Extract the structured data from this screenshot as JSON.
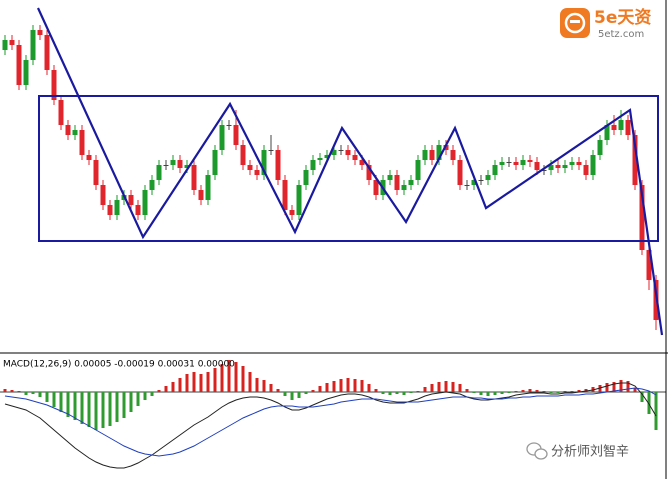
{
  "chart_data": [
    {
      "type": "candlestick",
      "ylim": [
        0,
        350
      ],
      "up_color": "#1c9a2c",
      "down_color": "#e0262c",
      "open": [
        300,
        310,
        305,
        265,
        290,
        320,
        315,
        280,
        250,
        225,
        215,
        220,
        195,
        190,
        165,
        145,
        135,
        150,
        155,
        145,
        135,
        160,
        170,
        185,
        185,
        190,
        182,
        185,
        160,
        150,
        175,
        200,
        225,
        225,
        205,
        185,
        180,
        175,
        200,
        200,
        170,
        140,
        135,
        165,
        180,
        190,
        192,
        195,
        200,
        200,
        195,
        190,
        185,
        170,
        155,
        170,
        175,
        160,
        165,
        170,
        190,
        200,
        190,
        205,
        200,
        190,
        165,
        165,
        170,
        170,
        175,
        185,
        188,
        188,
        185,
        190,
        188,
        180,
        180,
        185,
        182,
        185,
        188,
        185,
        175,
        195,
        210,
        225,
        220,
        230,
        215,
        165,
        100,
        70
      ],
      "high": [
        315,
        315,
        310,
        295,
        325,
        325,
        320,
        285,
        255,
        230,
        225,
        225,
        200,
        195,
        170,
        150,
        155,
        160,
        160,
        150,
        165,
        175,
        190,
        190,
        195,
        195,
        190,
        190,
        165,
        180,
        205,
        230,
        230,
        240,
        210,
        190,
        185,
        205,
        215,
        205,
        175,
        145,
        170,
        185,
        195,
        197,
        200,
        205,
        205,
        205,
        200,
        195,
        190,
        175,
        175,
        180,
        180,
        170,
        175,
        195,
        205,
        205,
        210,
        210,
        205,
        195,
        170,
        175,
        175,
        180,
        190,
        193,
        193,
        193,
        195,
        195,
        193,
        185,
        190,
        190,
        190,
        193,
        193,
        190,
        200,
        215,
        230,
        235,
        240,
        235,
        220,
        170,
        105,
        75
      ],
      "low": [
        295,
        300,
        260,
        260,
        285,
        310,
        275,
        245,
        220,
        210,
        210,
        190,
        185,
        160,
        140,
        130,
        130,
        145,
        140,
        130,
        130,
        155,
        165,
        180,
        180,
        177,
        177,
        155,
        145,
        145,
        170,
        195,
        220,
        200,
        180,
        175,
        170,
        170,
        195,
        165,
        135,
        130,
        130,
        160,
        175,
        185,
        187,
        190,
        195,
        190,
        185,
        180,
        165,
        150,
        150,
        165,
        155,
        155,
        160,
        165,
        185,
        185,
        185,
        195,
        185,
        160,
        160,
        160,
        165,
        165,
        170,
        180,
        183,
        180,
        180,
        183,
        175,
        175,
        175,
        177,
        177,
        180,
        180,
        170,
        170,
        190,
        205,
        215,
        215,
        210,
        160,
        95,
        60,
        20
      ],
      "close": [
        310,
        305,
        265,
        290,
        320,
        315,
        280,
        250,
        225,
        215,
        220,
        195,
        190,
        165,
        145,
        135,
        150,
        155,
        145,
        135,
        160,
        170,
        185,
        185,
        190,
        182,
        185,
        160,
        150,
        175,
        200,
        225,
        225,
        205,
        185,
        180,
        175,
        200,
        200,
        170,
        140,
        135,
        165,
        180,
        190,
        192,
        195,
        200,
        200,
        195,
        190,
        185,
        170,
        155,
        170,
        175,
        160,
        165,
        170,
        190,
        200,
        190,
        205,
        200,
        190,
        165,
        165,
        170,
        170,
        175,
        185,
        188,
        188,
        185,
        190,
        188,
        180,
        180,
        185,
        182,
        185,
        188,
        185,
        175,
        195,
        210,
        225,
        220,
        230,
        215,
        165,
        100,
        70,
        30
      ]
    },
    {
      "type": "macd",
      "title": "MACD(12,26,9) 0.00005 -0.00019 0.00031 0.00000",
      "ylim": [
        -85,
        35
      ],
      "up_color": "#d8221f",
      "down_color": "#2f9a2f",
      "histogram": [
        3,
        2,
        1,
        -3,
        -2,
        -5,
        -10,
        -15,
        -20,
        -25,
        -28,
        -32,
        -35,
        -38,
        -36,
        -34,
        -30,
        -26,
        -20,
        -14,
        -8,
        -4,
        2,
        6,
        10,
        14,
        18,
        20,
        18,
        20,
        24,
        28,
        32,
        30,
        26,
        20,
        14,
        12,
        8,
        3,
        -4,
        -8,
        -6,
        -2,
        2,
        6,
        9,
        11,
        13,
        14,
        13,
        12,
        8,
        3,
        -2,
        -3,
        -2,
        -3,
        -1,
        1,
        5,
        8,
        10,
        11,
        10,
        8,
        3,
        -1,
        -3,
        -4,
        -3,
        -2,
        -1,
        1,
        2,
        3,
        2,
        1,
        -1,
        -1,
        1,
        1,
        2,
        3,
        5,
        7,
        9,
        10,
        12,
        11,
        4,
        -10,
        -22,
        -38
      ],
      "series": [
        {
          "color": "#222222",
          "values": [
            -12,
            -14,
            -16,
            -18,
            -22,
            -26,
            -32,
            -38,
            -44,
            -50,
            -56,
            -61,
            -66,
            -70,
            -73,
            -75,
            -76,
            -76,
            -74,
            -71,
            -67,
            -63,
            -58,
            -53,
            -48,
            -43,
            -38,
            -33,
            -29,
            -25,
            -20,
            -15,
            -11,
            -8,
            -6,
            -5,
            -5,
            -6,
            -8,
            -11,
            -15,
            -18,
            -18,
            -16,
            -13,
            -10,
            -7,
            -5,
            -3,
            -2,
            -2,
            -3,
            -5,
            -8,
            -10,
            -11,
            -11,
            -11,
            -9,
            -7,
            -4,
            -2,
            -1,
            0,
            -1,
            -2,
            -5,
            -7,
            -8,
            -8,
            -7,
            -6,
            -5,
            -3,
            -2,
            -1,
            -1,
            -1,
            -2,
            -2,
            -1,
            -1,
            0,
            1,
            2,
            4,
            6,
            8,
            9,
            9,
            6,
            -2,
            -12,
            -24
          ]
        },
        {
          "color": "#1f3fbf",
          "values": [
            -4,
            -5,
            -6,
            -7,
            -9,
            -11,
            -13,
            -16,
            -19,
            -22,
            -26,
            -30,
            -34,
            -38,
            -42,
            -46,
            -50,
            -54,
            -57,
            -60,
            -62,
            -63,
            -64,
            -63,
            -62,
            -60,
            -57,
            -54,
            -50,
            -46,
            -42,
            -38,
            -34,
            -30,
            -26,
            -23,
            -20,
            -17,
            -15,
            -14,
            -14,
            -14,
            -15,
            -15,
            -15,
            -14,
            -13,
            -12,
            -10,
            -9,
            -8,
            -7,
            -7,
            -7,
            -8,
            -9,
            -10,
            -10,
            -10,
            -10,
            -9,
            -8,
            -7,
            -6,
            -5,
            -5,
            -5,
            -6,
            -6,
            -7,
            -7,
            -7,
            -6,
            -6,
            -5,
            -5,
            -4,
            -4,
            -4,
            -4,
            -3,
            -3,
            -3,
            -2,
            -2,
            -1,
            0,
            1,
            2,
            3,
            4,
            3,
            1,
            -3
          ]
        }
      ]
    }
  ],
  "watermark": {
    "brand": "5e天资",
    "site": "5etz.com",
    "author": "分析师刘智辛"
  }
}
